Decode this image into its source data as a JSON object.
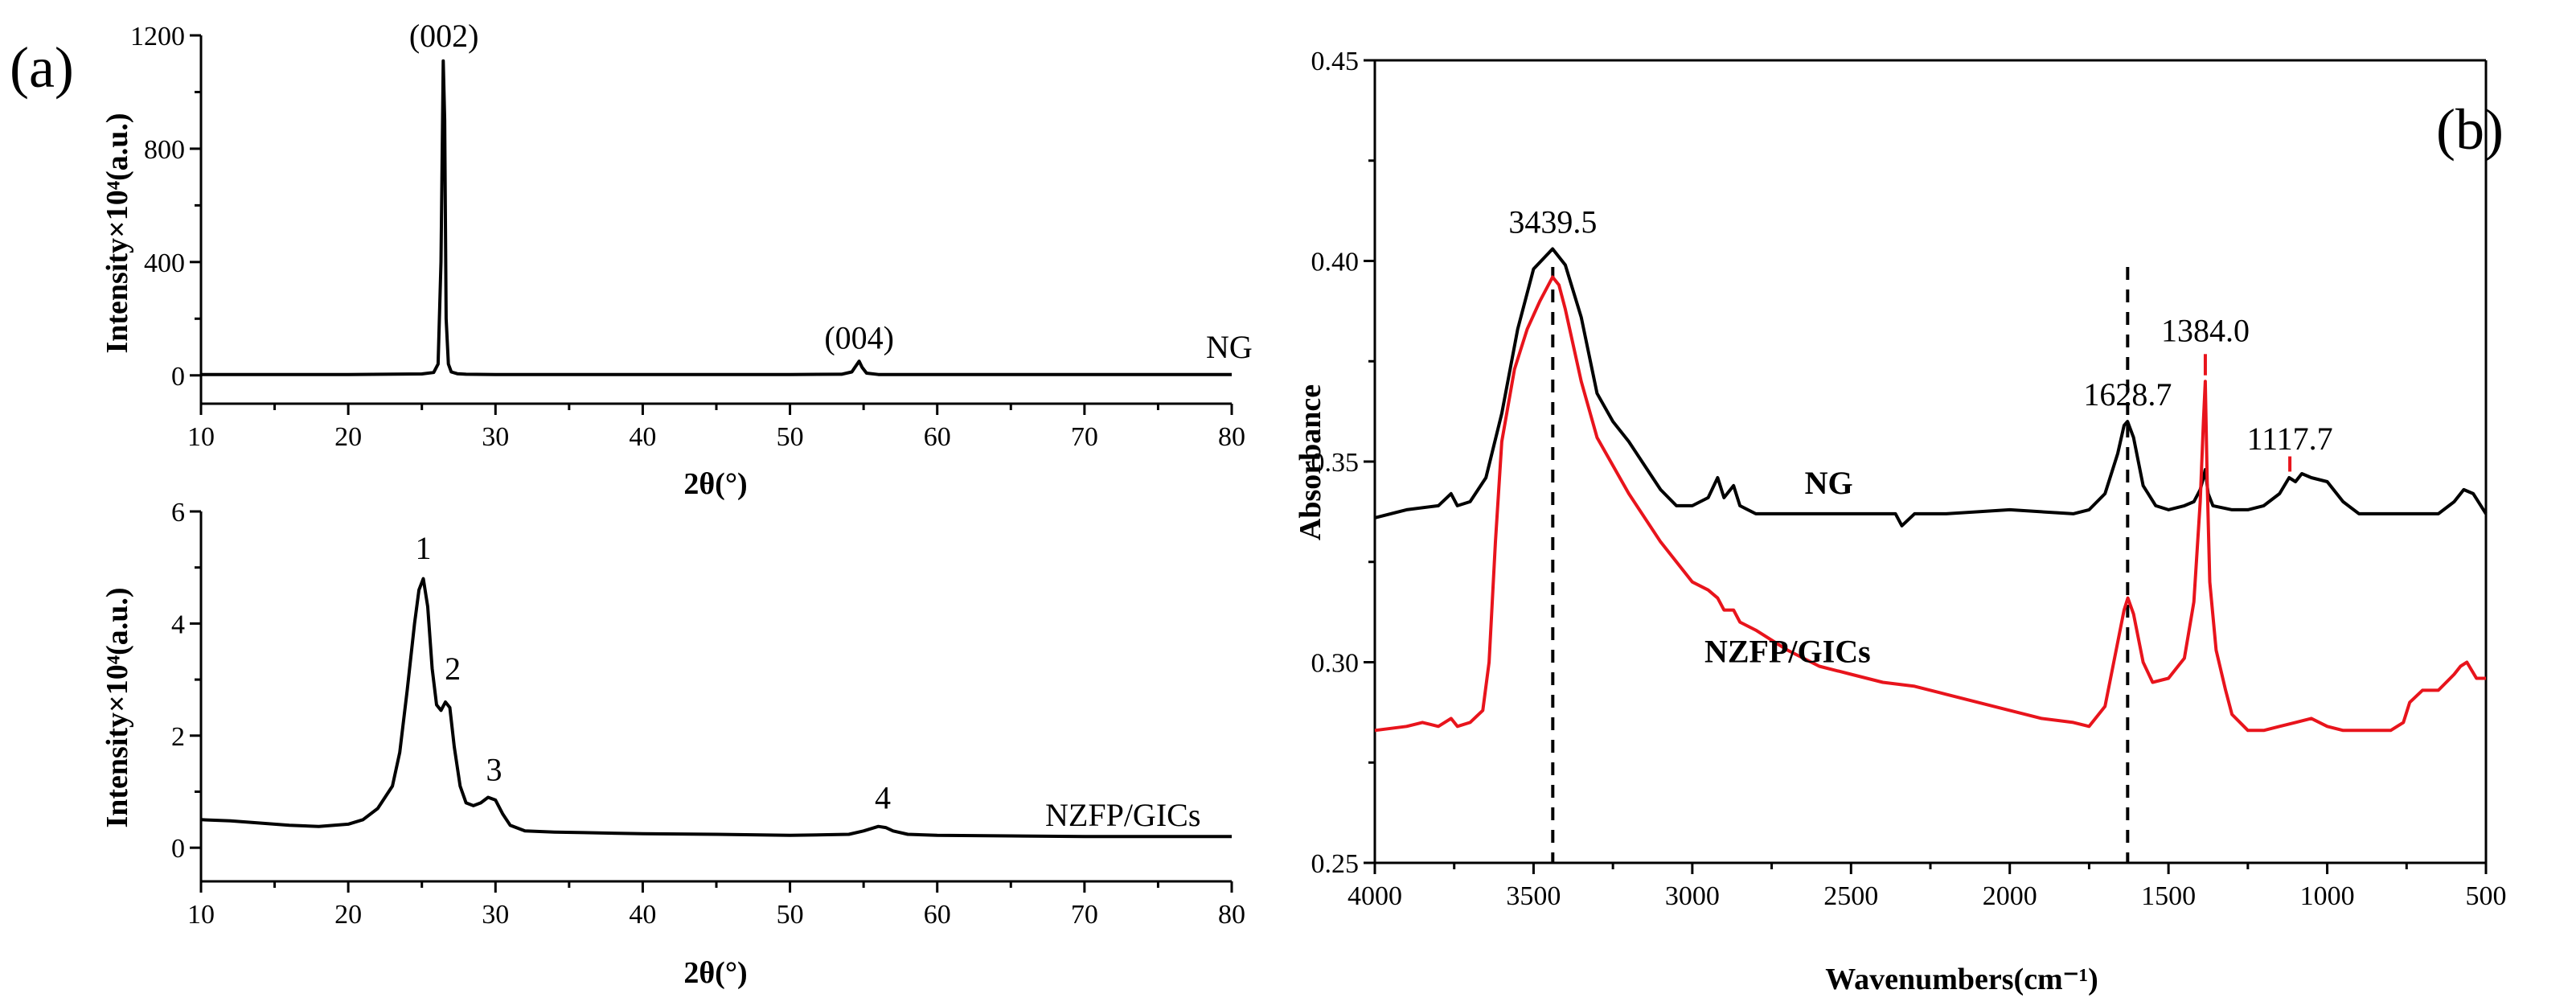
{
  "chart_data": [
    {
      "panel": "(a)",
      "type": "line",
      "title": "",
      "xlabel": "2θ(°)",
      "ylabel": "Intensity×10⁴(a.u.)",
      "xlim": [
        10,
        80
      ],
      "ylim": [
        -100,
        1200
      ],
      "xticks": [
        10,
        20,
        30,
        40,
        50,
        60,
        70,
        80
      ],
      "yticks": [
        0,
        400,
        800,
        1200
      ],
      "series": [
        {
          "name": "NG",
          "color": "#000000",
          "x": [
            10,
            20,
            25,
            25.8,
            26.1,
            26.3,
            26.45,
            26.55,
            26.65,
            26.8,
            27.0,
            27.4,
            28,
            30,
            40,
            50,
            53.5,
            54.2,
            54.5,
            54.7,
            54.9,
            55.2,
            56,
            60,
            70,
            80
          ],
          "values": [
            3,
            3,
            5,
            10,
            40,
            400,
            1110,
            900,
            200,
            40,
            12,
            6,
            4,
            3,
            3,
            3,
            4,
            12,
            35,
            50,
            28,
            8,
            3,
            3,
            3,
            3
          ]
        }
      ],
      "annotations": [
        {
          "text": "(002)",
          "x": 26.5,
          "y": 1160
        },
        {
          "text": "(004)",
          "x": 54.7,
          "y": 95
        }
      ]
    },
    {
      "panel": "(a)",
      "type": "line",
      "title": "",
      "xlabel": "2θ(°)",
      "ylabel": "Intensity×10⁴(a.u.)",
      "xlim": [
        10,
        80
      ],
      "ylim": [
        -0.6,
        6
      ],
      "xticks": [
        10,
        20,
        30,
        40,
        50,
        60,
        70,
        80
      ],
      "yticks": [
        0,
        2,
        4,
        6
      ],
      "series": [
        {
          "name": "NZFP/GICs",
          "color": "#000000",
          "x": [
            10,
            12,
            14,
            16,
            18,
            20,
            21,
            22,
            23,
            23.5,
            24,
            24.5,
            24.8,
            25.1,
            25.4,
            25.7,
            26.0,
            26.3,
            26.6,
            26.9,
            27.2,
            27.6,
            28,
            28.5,
            29,
            29.5,
            30,
            30.5,
            31,
            32,
            34,
            36,
            40,
            45,
            50,
            54,
            55,
            56,
            56.5,
            57,
            58,
            60,
            65,
            70,
            75,
            80
          ],
          "values": [
            0.5,
            0.48,
            0.44,
            0.4,
            0.38,
            0.42,
            0.5,
            0.7,
            1.1,
            1.7,
            2.8,
            4.0,
            4.6,
            4.8,
            4.3,
            3.2,
            2.55,
            2.45,
            2.6,
            2.5,
            1.8,
            1.1,
            0.8,
            0.75,
            0.8,
            0.9,
            0.85,
            0.6,
            0.4,
            0.3,
            0.28,
            0.27,
            0.25,
            0.24,
            0.22,
            0.24,
            0.3,
            0.38,
            0.36,
            0.3,
            0.24,
            0.22,
            0.21,
            0.2,
            0.2,
            0.2
          ]
        }
      ],
      "annotations": [
        {
          "text": "1",
          "x": 25.1,
          "y": 5.15
        },
        {
          "text": "2",
          "x": 27.1,
          "y": 3.0
        },
        {
          "text": "3",
          "x": 29.9,
          "y": 1.2
        },
        {
          "text": "4",
          "x": 56.3,
          "y": 0.7
        }
      ]
    },
    {
      "panel": "(b)",
      "type": "line",
      "title": "",
      "xlabel": "Wavenumbers(cm⁻¹)",
      "ylabel": "Absorbance",
      "xlim": [
        4000,
        500
      ],
      "ylim": [
        0.25,
        0.45
      ],
      "xticks": [
        4000,
        3500,
        3000,
        2500,
        2000,
        1500,
        1000,
        500
      ],
      "yticks": [
        0.25,
        0.3,
        0.35,
        0.4,
        0.45
      ],
      "series": [
        {
          "name": "NG",
          "color": "#000000",
          "x": [
            4000,
            3900,
            3800,
            3760,
            3740,
            3700,
            3650,
            3600,
            3550,
            3500,
            3440,
            3400,
            3350,
            3300,
            3250,
            3200,
            3150,
            3100,
            3050,
            3000,
            2950,
            2920,
            2900,
            2870,
            2850,
            2800,
            2700,
            2500,
            2360,
            2340,
            2300,
            2200,
            2000,
            1800,
            1750,
            1700,
            1660,
            1640,
            1629,
            1610,
            1580,
            1540,
            1500,
            1450,
            1420,
            1400,
            1390,
            1384,
            1375,
            1360,
            1300,
            1250,
            1200,
            1150,
            1120,
            1100,
            1080,
            1050,
            1000,
            950,
            900,
            800,
            700,
            650,
            600,
            570,
            540,
            500
          ],
          "values": [
            0.336,
            0.338,
            0.339,
            0.342,
            0.339,
            0.34,
            0.346,
            0.362,
            0.383,
            0.398,
            0.403,
            0.399,
            0.386,
            0.367,
            0.36,
            0.355,
            0.349,
            0.343,
            0.339,
            0.339,
            0.341,
            0.346,
            0.341,
            0.344,
            0.339,
            0.337,
            0.337,
            0.337,
            0.337,
            0.334,
            0.337,
            0.337,
            0.338,
            0.337,
            0.338,
            0.342,
            0.352,
            0.359,
            0.36,
            0.356,
            0.344,
            0.339,
            0.338,
            0.339,
            0.34,
            0.343,
            0.346,
            0.348,
            0.342,
            0.339,
            0.338,
            0.338,
            0.339,
            0.342,
            0.346,
            0.345,
            0.347,
            0.346,
            0.345,
            0.34,
            0.337,
            0.337,
            0.337,
            0.337,
            0.34,
            0.343,
            0.342,
            0.337
          ]
        },
        {
          "name": "NZFP/GICs",
          "color": "#e8141c",
          "x": [
            4000,
            3900,
            3850,
            3800,
            3760,
            3740,
            3700,
            3660,
            3640,
            3620,
            3600,
            3560,
            3520,
            3480,
            3440,
            3420,
            3400,
            3350,
            3300,
            3200,
            3100,
            3000,
            2950,
            2920,
            2900,
            2870,
            2850,
            2800,
            2700,
            2600,
            2500,
            2400,
            2300,
            2200,
            2100,
            2000,
            1900,
            1800,
            1750,
            1700,
            1660,
            1640,
            1628,
            1610,
            1580,
            1550,
            1500,
            1450,
            1420,
            1400,
            1390,
            1384,
            1378,
            1370,
            1350,
            1320,
            1300,
            1250,
            1200,
            1150,
            1100,
            1050,
            1000,
            950,
            900,
            800,
            760,
            740,
            700,
            650,
            600,
            580,
            560,
            530,
            500
          ],
          "values": [
            0.283,
            0.284,
            0.285,
            0.284,
            0.286,
            0.284,
            0.285,
            0.288,
            0.3,
            0.33,
            0.355,
            0.373,
            0.383,
            0.39,
            0.396,
            0.394,
            0.388,
            0.37,
            0.356,
            0.342,
            0.33,
            0.32,
            0.318,
            0.316,
            0.313,
            0.313,
            0.31,
            0.308,
            0.303,
            0.299,
            0.297,
            0.295,
            0.294,
            0.292,
            0.29,
            0.288,
            0.286,
            0.285,
            0.284,
            0.289,
            0.305,
            0.313,
            0.316,
            0.312,
            0.3,
            0.295,
            0.296,
            0.301,
            0.315,
            0.34,
            0.36,
            0.37,
            0.345,
            0.32,
            0.303,
            0.293,
            0.287,
            0.283,
            0.283,
            0.284,
            0.285,
            0.286,
            0.284,
            0.283,
            0.283,
            0.283,
            0.285,
            0.29,
            0.293,
            0.293,
            0.297,
            0.299,
            0.3,
            0.296,
            0.296
          ]
        }
      ],
      "annotations": [
        {
          "text": "3439.5",
          "x": 3439.5,
          "y": 0.407
        },
        {
          "text": "1628.7",
          "x": 1628.7,
          "y": 0.364
        },
        {
          "text": "1384.0",
          "x": 1384.0,
          "y": 0.38
        },
        {
          "text": "1117.7",
          "x": 1117.7,
          "y": 0.353
        }
      ],
      "series_labels": [
        {
          "text": "NG",
          "x": 2570,
          "y": 0.342
        },
        {
          "text": "NZFP/GICs",
          "x": 2700,
          "y": 0.3
        }
      ],
      "dashed_markers": [
        3439.5,
        1628.7
      ]
    }
  ]
}
